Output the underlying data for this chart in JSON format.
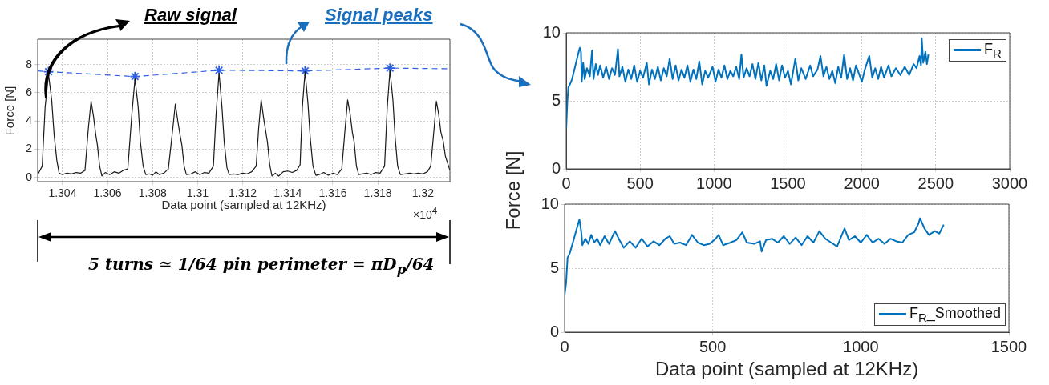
{
  "chart_data": [
    {
      "type": "line",
      "xlabel": "Data point (sampled at 12KHz)",
      "ylabel": "Force [N]",
      "xlim": [
        1.3029,
        1.3212
      ],
      "ylim": [
        -0.3,
        9.8
      ],
      "xticks": [
        1.304,
        1.306,
        1.308,
        1.31,
        1.312,
        1.314,
        1.316,
        1.318,
        1.32
      ],
      "yticks": [
        0,
        2,
        4,
        6,
        8
      ],
      "grid": true,
      "legend": false,
      "annotations": [
        "Raw signal",
        "Signal peaks",
        "×10$^{4}$",
        "5 turns ≃ 1/64 pin perimeter = πD$_{p}$/64"
      ],
      "series": [
        {
          "type": "line",
          "color": "#1a1a1a",
          "marker": "none",
          "line_style": "solid",
          "x": [
            1.3029,
            1.3031,
            1.30323,
            1.30338,
            1.30352,
            1.30363,
            1.30375,
            1.30385,
            1.304,
            1.3042,
            1.3044,
            1.3046,
            1.3048,
            1.305,
            1.30515,
            1.30527,
            1.30538,
            1.30548,
            1.30555,
            1.30565,
            1.30575,
            1.3059,
            1.3061,
            1.3063,
            1.3065,
            1.3067,
            1.3069,
            1.30708,
            1.30722,
            1.30736,
            1.30746,
            1.30758,
            1.3077,
            1.30785,
            1.308,
            1.30815,
            1.3083,
            1.3085,
            1.3087,
            1.3089,
            1.30901,
            1.30912,
            1.30922,
            1.3093,
            1.3094,
            1.3095,
            1.3097,
            1.3099,
            1.3101,
            1.3103,
            1.3105,
            1.3107,
            1.31082,
            1.31095,
            1.31108,
            1.31118,
            1.3113,
            1.3114,
            1.3116,
            1.3118,
            1.312,
            1.3122,
            1.3124,
            1.3126,
            1.31271,
            1.31282,
            1.31293,
            1.31303,
            1.3131,
            1.3132,
            1.3133,
            1.31345,
            1.3136,
            1.3138,
            1.314,
            1.3142,
            1.3144,
            1.31455,
            1.31465,
            1.31477,
            1.3149,
            1.315,
            1.31512,
            1.31525,
            1.3154,
            1.3156,
            1.3158,
            1.316,
            1.3162,
            1.3164,
            1.31655,
            1.31666,
            1.31677,
            1.31687,
            1.31695,
            1.31705,
            1.31715,
            1.3173,
            1.3175,
            1.3177,
            1.3179,
            1.3181,
            1.3183,
            1.31842,
            1.31854,
            1.31867,
            1.31877,
            1.31888,
            1.319,
            1.3192,
            1.3194,
            1.3196,
            1.3198,
            1.32,
            1.3202,
            1.32035,
            1.3205,
            1.3206,
            1.3207,
            1.3208,
            1.3209,
            1.321,
            1.3212
          ],
          "values": [
            0.2,
            0.8,
            5.0,
            7.3,
            5.5,
            3.0,
            1.2,
            0.3,
            0.2,
            0.3,
            0.25,
            0.35,
            0.3,
            0.5,
            3.5,
            5.4,
            4.3,
            3.0,
            2.3,
            0.8,
            0.1,
            0.35,
            0.2,
            0.4,
            0.3,
            0.5,
            0.6,
            4.5,
            7.0,
            5.0,
            2.5,
            0.8,
            0.2,
            0.25,
            0.15,
            0.4,
            0.2,
            0.3,
            0.6,
            3.5,
            5.2,
            4.0,
            3.0,
            2.3,
            0.8,
            0.2,
            0.25,
            0.4,
            0.2,
            0.35,
            0.3,
            0.8,
            4.5,
            7.4,
            5.0,
            2.5,
            0.7,
            0.2,
            0.25,
            0.2,
            0.3,
            0.25,
            0.4,
            0.8,
            3.5,
            5.5,
            4.2,
            3.2,
            2.5,
            0.9,
            0.1,
            0.3,
            0.1,
            0.4,
            0.45,
            0.35,
            0.5,
            0.9,
            5.0,
            7.5,
            5.2,
            2.8,
            0.8,
            0.15,
            0.2,
            0.35,
            0.15,
            0.3,
            0.2,
            0.6,
            3.5,
            5.5,
            4.5,
            3.2,
            2.5,
            0.8,
            0.2,
            0.25,
            0.3,
            0.2,
            0.35,
            0.3,
            0.8,
            5.0,
            7.6,
            5.5,
            2.8,
            0.8,
            0.2,
            0.25,
            0.3,
            0.25,
            0.3,
            0.25,
            0.4,
            0.8,
            3.5,
            5.4,
            4.5,
            3.2,
            2.6,
            1.5,
            0.5
          ]
        },
        {
          "type": "line",
          "color": "#2f5fe3",
          "marker": "none",
          "line_style": "dashed",
          "x": [
            1.3029,
            1.30338,
            1.30722,
            1.31095,
            1.31477,
            1.31854,
            1.3212
          ],
          "values": [
            7.55,
            7.5,
            7.15,
            7.6,
            7.55,
            7.75,
            7.7
          ]
        },
        {
          "type": "scatter",
          "color": "#2f5fe3",
          "marker": "cross",
          "x": [
            1.30338,
            1.30722,
            1.31095,
            1.31477,
            1.31854
          ],
          "values": [
            7.5,
            7.15,
            7.6,
            7.55,
            7.75
          ]
        }
      ]
    },
    {
      "type": "line",
      "ylabel": "Force [N]",
      "xlim": [
        0,
        3000
      ],
      "ylim": [
        0,
        10
      ],
      "xticks": [
        0,
        500,
        1000,
        1500,
        2000,
        2500,
        3000
      ],
      "yticks": [
        0,
        5,
        10
      ],
      "grid": true,
      "legend": "top right",
      "series": [
        {
          "name": "F$_{R}$",
          "color": "#0072bd",
          "x": [
            0,
            8,
            15,
            25,
            40,
            60,
            80,
            92,
            100,
            105,
            115,
            125,
            140,
            160,
            175,
            185,
            200,
            215,
            230,
            250,
            270,
            290,
            310,
            330,
            350,
            360,
            380,
            400,
            420,
            440,
            460,
            480,
            500,
            520,
            545,
            560,
            580,
            600,
            620,
            640,
            660,
            680,
            700,
            720,
            740,
            760,
            780,
            800,
            820,
            840,
            860,
            880,
            900,
            920,
            940,
            960,
            990,
            1010,
            1030,
            1050,
            1070,
            1090,
            1110,
            1130,
            1150,
            1170,
            1185,
            1200,
            1220,
            1240,
            1260,
            1280,
            1300,
            1320,
            1340,
            1355,
            1380,
            1400,
            1420,
            1440,
            1460,
            1480,
            1500,
            1520,
            1550,
            1570,
            1590,
            1620,
            1650,
            1670,
            1700,
            1720,
            1740,
            1760,
            1780,
            1800,
            1820,
            1840,
            1860,
            1880,
            1900,
            1920,
            1940,
            1960,
            2000,
            2020,
            2050,
            2070,
            2090,
            2110,
            2130,
            2150,
            2180,
            2200,
            2230,
            2260,
            2290,
            2320,
            2350,
            2370,
            2390,
            2400,
            2405,
            2415,
            2430,
            2440,
            2450
          ],
          "values": [
            2.9,
            5.0,
            6.0,
            6.2,
            6.6,
            7.5,
            8.4,
            8.9,
            8.6,
            6.4,
            7.8,
            6.6,
            7.4,
            6.8,
            8.7,
            6.6,
            7.7,
            6.9,
            7.6,
            6.7,
            7.5,
            6.6,
            7.4,
            6.9,
            8.8,
            6.8,
            7.5,
            6.4,
            7.3,
            6.6,
            7.6,
            6.4,
            7.2,
            6.7,
            7.8,
            6.2,
            7.3,
            6.6,
            7.5,
            6.5,
            7.4,
            6.8,
            8.1,
            6.6,
            7.6,
            6.5,
            7.3,
            6.7,
            7.6,
            6.4,
            7.3,
            6.6,
            7.9,
            6.2,
            7.2,
            6.7,
            7.5,
            6.4,
            7.3,
            6.7,
            7.6,
            6.6,
            7.2,
            6.8,
            7.5,
            6.6,
            8.4,
            6.7,
            7.4,
            6.8,
            7.7,
            6.6,
            7.8,
            6.5,
            7.6,
            6.1,
            7.2,
            6.6,
            7.7,
            6.5,
            7.6,
            6.7,
            7.2,
            6.2,
            8.1,
            6.5,
            7.4,
            6.6,
            7.6,
            6.8,
            7.3,
            8.3,
            6.8,
            7.5,
            6.6,
            7.2,
            6.3,
            7.5,
            6.7,
            8.4,
            6.6,
            7.4,
            6.5,
            7.6,
            6.4,
            7.3,
            8.3,
            6.7,
            7.4,
            6.6,
            7.5,
            6.7,
            7.6,
            6.8,
            7.4,
            6.9,
            7.5,
            6.9,
            7.7,
            7.4,
            8.3,
            7.6,
            9.6,
            7.8,
            8.6,
            7.7,
            8.4
          ]
        }
      ]
    },
    {
      "type": "line",
      "xlabel": "Data point (sampled at 12KHz)",
      "xlim": [
        0,
        1500
      ],
      "ylim": [
        0,
        10
      ],
      "xticks": [
        0,
        500,
        1000,
        1500
      ],
      "yticks": [
        0,
        5,
        10
      ],
      "grid": true,
      "legend": "bottom right",
      "series": [
        {
          "name": "F$_{R}$_Smoothed",
          "color": "#0072bd",
          "x": [
            0,
            5,
            10,
            18,
            28,
            40,
            50,
            56,
            60,
            70,
            80,
            90,
            100,
            110,
            120,
            135,
            150,
            170,
            185,
            200,
            220,
            240,
            260,
            280,
            300,
            320,
            340,
            355,
            370,
            390,
            410,
            430,
            450,
            470,
            490,
            510,
            520,
            535,
            560,
            580,
            600,
            615,
            640,
            660,
            665,
            680,
            700,
            720,
            740,
            760,
            780,
            800,
            820,
            840,
            860,
            880,
            900,
            920,
            945,
            960,
            980,
            1000,
            1020,
            1040,
            1060,
            1080,
            1100,
            1120,
            1140,
            1160,
            1180,
            1195,
            1200,
            1215,
            1230,
            1250,
            1265,
            1280
          ],
          "values": [
            2.9,
            3.8,
            5.8,
            6.2,
            7.0,
            8.0,
            8.8,
            7.9,
            6.8,
            7.3,
            6.9,
            7.6,
            7.0,
            7.3,
            6.8,
            7.5,
            6.9,
            7.9,
            7.2,
            6.6,
            7.1,
            6.6,
            7.3,
            6.7,
            7.1,
            6.8,
            7.3,
            7.5,
            6.9,
            7.0,
            6.8,
            7.6,
            7.0,
            6.8,
            6.9,
            7.3,
            7.6,
            6.8,
            7.0,
            7.2,
            7.8,
            7.0,
            6.9,
            7.1,
            6.3,
            7.2,
            7.3,
            7.0,
            7.5,
            6.9,
            7.4,
            6.8,
            7.5,
            7.0,
            7.9,
            7.3,
            7.0,
            6.7,
            8.1,
            7.2,
            7.5,
            7.0,
            7.6,
            7.0,
            7.3,
            6.9,
            7.3,
            7.1,
            7.0,
            7.6,
            7.8,
            8.5,
            8.9,
            8.1,
            7.6,
            7.9,
            7.7,
            8.4
          ]
        }
      ]
    }
  ]
}
